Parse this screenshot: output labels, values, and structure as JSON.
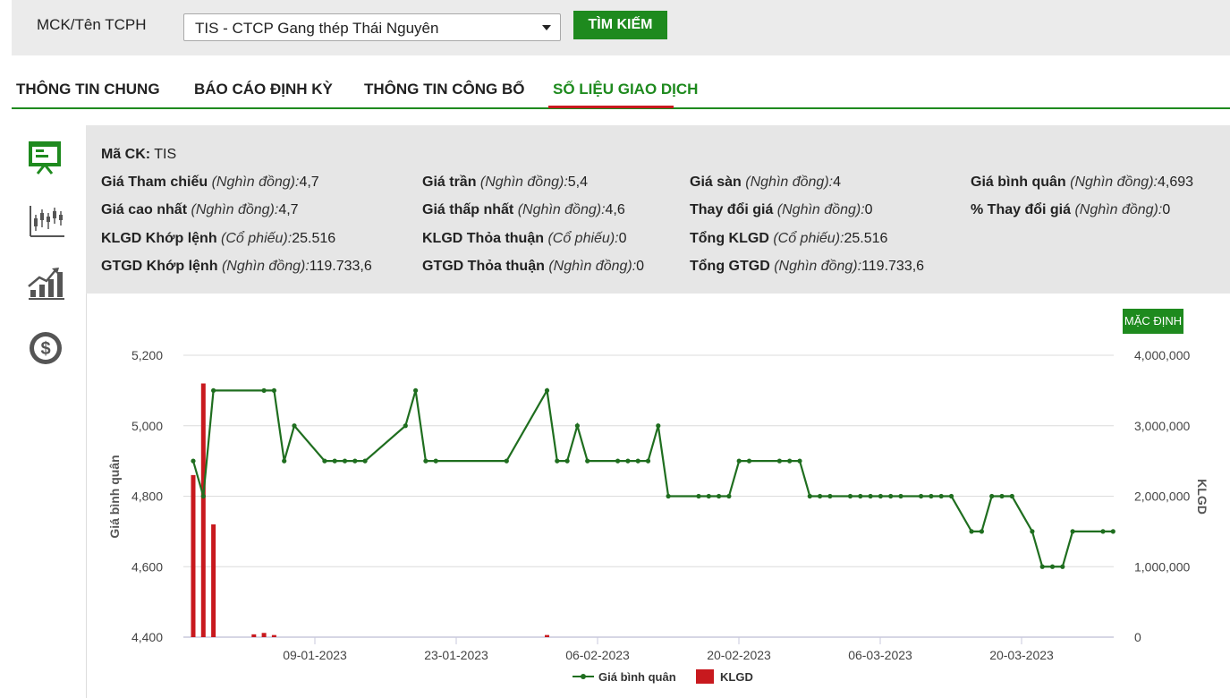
{
  "search": {
    "label": "MCK/Tên TCPH",
    "selected": "TIS - CTCP Gang thép Thái Nguyên",
    "button": "TÌM KIẾM"
  },
  "tabs": [
    {
      "label": "THÔNG TIN CHUNG"
    },
    {
      "label": "BÁO CÁO ĐỊNH KỲ"
    },
    {
      "label": "THÔNG TIN CÔNG BỐ"
    },
    {
      "label": "SỐ LIỆU GIAO DỊCH",
      "active": true
    }
  ],
  "side_icons": [
    "presentation-board-icon",
    "candlestick-chart-icon",
    "growth-bar-chart-icon",
    "dollar-coin-icon"
  ],
  "info": {
    "ma_ck_label": "Mã CK:",
    "ma_ck_value": "TIS",
    "rows": [
      [
        {
          "label": "Giá Tham chiếu",
          "unit": "(Nghìn đồng):",
          "value": "4,7"
        },
        {
          "label": "Giá trần",
          "unit": "(Nghìn đồng):",
          "value": "5,4"
        },
        {
          "label": "Giá sàn",
          "unit": "(Nghìn đồng):",
          "value": "4"
        },
        {
          "label": "Giá bình quân",
          "unit": "(Nghìn đồng):",
          "value": "4,693"
        }
      ],
      [
        {
          "label": "Giá cao nhất",
          "unit": "(Nghìn đồng):",
          "value": "4,7"
        },
        {
          "label": "Giá thấp nhất",
          "unit": "(Nghìn đồng):",
          "value": "4,6"
        },
        {
          "label": "Thay đổi giá",
          "unit": "(Nghìn đồng):",
          "value": "0"
        },
        {
          "label": "% Thay đổi giá",
          "unit": "(Nghìn đồng):",
          "value": "0"
        }
      ],
      [
        {
          "label": "KLGD Khớp lệnh",
          "unit": "(Cổ phiếu):",
          "value": "25.516"
        },
        {
          "label": "KLGD Thỏa thuận",
          "unit": "(Cổ phiếu):",
          "value": "0"
        },
        {
          "label": "Tổng KLGD",
          "unit": "(Cổ phiếu):",
          "value": "25.516"
        }
      ],
      [
        {
          "label": "GTGD Khớp lệnh",
          "unit": "(Nghìn đồng):",
          "value": "119.733,6"
        },
        {
          "label": "GTGD Thỏa thuận",
          "unit": "(Nghìn đồng):",
          "value": "0"
        },
        {
          "label": "Tổng GTGD",
          "unit": "(Nghìn đồng):",
          "value": "119.733,6"
        }
      ]
    ]
  },
  "chart": {
    "default_button": "MẶC ĐỊNH",
    "legend_price": "Giá bình quân",
    "legend_volume": "KLGD",
    "colors": {
      "price": "#1f6e1f",
      "volume": "#c8191e"
    }
  },
  "chart_data": {
    "type": "line",
    "left_axis_title": "Giá bình quân",
    "right_axis_title": "KLGD",
    "left_ticks": [
      "5,200",
      "5,000",
      "4,800",
      "4,600",
      "4,400"
    ],
    "right_ticks": [
      "4,000,000",
      "3,000,000",
      "2,000,000",
      "1,000,000",
      "0"
    ],
    "x_ticks": [
      "09-01-2023",
      "23-01-2023",
      "06-02-2023",
      "20-02-2023",
      "06-03-2023",
      "20-03-2023"
    ],
    "ylim_left": [
      4400,
      5200
    ],
    "ylim_right": [
      0,
      4000000
    ],
    "price_series": [
      4900,
      4800,
      5100,
      5100,
      5100,
      4900,
      5000,
      4900,
      4900,
      4900,
      4900,
      4900,
      5000,
      5100,
      4900,
      4900,
      4900,
      5100,
      4900,
      4900,
      5000,
      4900,
      4900,
      4900,
      4900,
      4900,
      5000,
      4800,
      4800,
      4800,
      4800,
      4800,
      4900,
      4900,
      4900,
      4900,
      4900,
      4800,
      4800,
      4800,
      4800,
      4800,
      4800,
      4800,
      4800,
      4800,
      4800,
      4800,
      4800,
      4800,
      4700,
      4700,
      4800,
      4800,
      4800,
      4700,
      4600,
      4600,
      4600,
      4700,
      4700,
      4700
    ],
    "price_index": [
      0,
      1,
      2,
      7,
      8,
      9,
      10,
      13,
      14,
      15,
      16,
      17,
      21,
      22,
      23,
      24,
      31,
      35,
      36,
      37,
      38,
      39,
      42,
      43,
      44,
      45,
      46,
      47,
      50,
      51,
      52,
      53,
      54,
      55,
      58,
      59,
      60,
      61,
      62,
      63,
      65,
      66,
      67,
      68,
      69,
      70,
      72,
      73,
      74,
      75,
      77,
      78,
      79,
      80,
      81,
      83,
      84,
      85,
      86,
      87,
      90,
      91
    ],
    "volume_series": [
      {
        "index": 0,
        "value": 2300000
      },
      {
        "index": 1,
        "value": 3600000
      },
      {
        "index": 2,
        "value": 1600000
      },
      {
        "index": 6,
        "value": 40000
      },
      {
        "index": 7,
        "value": 60000
      },
      {
        "index": 8,
        "value": 30000
      },
      {
        "index": 35,
        "value": 30000
      }
    ]
  }
}
